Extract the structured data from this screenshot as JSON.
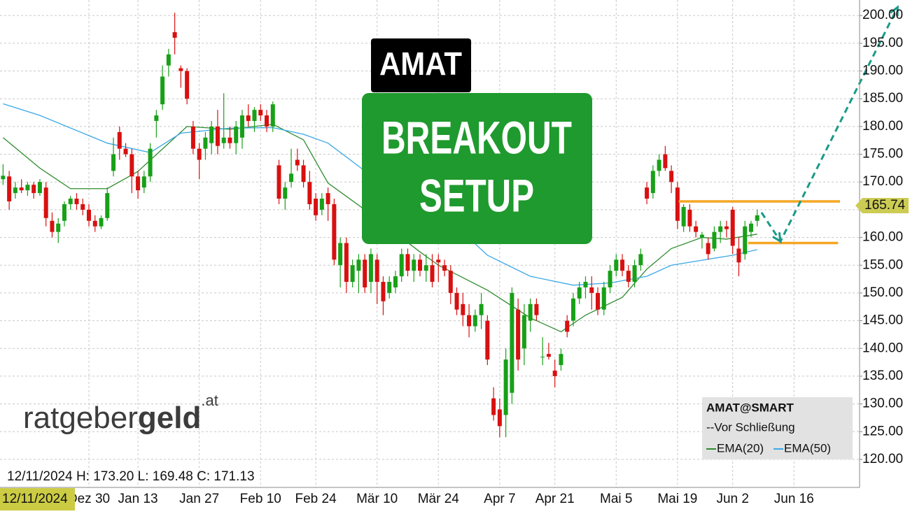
{
  "chart_data": {
    "type": "candlestick",
    "title": "AMAT",
    "badge_lines": [
      "BREAKOUT",
      "SETUP"
    ],
    "crosshair_info": "12/11/2024 H: 173.20 L: 169.48 C: 171.13",
    "cursor_date": "12/11/2024",
    "logo": {
      "light": "ratgeber",
      "bold": "geld",
      "suffix": ".at"
    },
    "legend_title": "AMAT@SMART",
    "legend_note": "--Vor Schließung",
    "last_price": {
      "value": 165.74,
      "label": "165.74",
      "color": "#cccc55"
    },
    "xlim": [
      -0.5,
      139.7
    ],
    "ylim": [
      115.2,
      202.8
    ],
    "yticks": [
      {
        "value": 120,
        "label": "120.00"
      },
      {
        "value": 125,
        "label": "125.00"
      },
      {
        "value": 130,
        "label": "130.00"
      },
      {
        "value": 135,
        "label": "135.00"
      },
      {
        "value": 140,
        "label": "140.00"
      },
      {
        "value": 145,
        "label": "145.00"
      },
      {
        "value": 150,
        "label": "150.00"
      },
      {
        "value": 155,
        "label": "155.00"
      },
      {
        "value": 160,
        "label": "160.00"
      },
      {
        "value": 165,
        "label": "165.00"
      },
      {
        "value": 170,
        "label": "170.00"
      },
      {
        "value": 175,
        "label": "175.00"
      },
      {
        "value": 180,
        "label": "180.00"
      },
      {
        "value": 185,
        "label": "185.00"
      },
      {
        "value": 190,
        "label": "190.00"
      },
      {
        "value": 195,
        "label": "195.00"
      },
      {
        "value": 200,
        "label": "200.00"
      }
    ],
    "grid": true,
    "categories": [
      null,
      null,
      null,
      null,
      null,
      null,
      null,
      null,
      null,
      null,
      null,
      null,
      null,
      null,
      "Dez 30",
      null,
      null,
      null,
      null,
      null,
      null,
      null,
      "Jan 13",
      null,
      null,
      null,
      null,
      null,
      null,
      null,
      null,
      null,
      "Jan 27",
      null,
      null,
      null,
      null,
      null,
      null,
      null,
      null,
      null,
      "Feb 10",
      null,
      null,
      null,
      null,
      null,
      null,
      null,
      null,
      "Feb 24",
      null,
      null,
      null,
      null,
      null,
      null,
      null,
      null,
      null,
      "Mär 10",
      null,
      null,
      null,
      null,
      null,
      null,
      null,
      null,
      null,
      "Mär 24",
      null,
      null,
      null,
      null,
      null,
      null,
      null,
      null,
      null,
      "Apr 7",
      null,
      null,
      null,
      null,
      null,
      null,
      null,
      null,
      "Apr 21",
      null,
      null,
      null,
      null,
      null,
      null,
      null,
      null,
      null,
      "Mai 5",
      null,
      null,
      null,
      null,
      null,
      null,
      null,
      null,
      null,
      "Mai 19",
      null,
      null,
      null,
      null,
      null,
      null,
      null,
      null,
      "Jun 2",
      null,
      null,
      null,
      null,
      null,
      null,
      null,
      null,
      null,
      "Jun 16",
      null,
      null,
      null,
      null,
      null,
      null,
      null,
      null,
      null,
      null
    ],
    "series": [
      {
        "name": "AMAT@SMART",
        "up_color": "#18a018",
        "down_color": "#d81010",
        "open": [
          170.5,
          171,
          168,
          169,
          168.5,
          169.5,
          168,
          169,
          163,
          161,
          163,
          166,
          167,
          166,
          165,
          163,
          162,
          163.5,
          172,
          179,
          176,
          175,
          171,
          169,
          171,
          181,
          184,
          191,
          197,
          190.5,
          190,
          180,
          176,
          176,
          177,
          180,
          177,
          178,
          177,
          178,
          182,
          181,
          183,
          182,
          180,
          173,
          167,
          170,
          174,
          173,
          170,
          167,
          165,
          168,
          166,
          155,
          159,
          152,
          154,
          156,
          152,
          156,
          152,
          150,
          151,
          153,
          157,
          154,
          156,
          154,
          155,
          156,
          155,
          154,
          150,
          148,
          146,
          144,
          146,
          145,
          131,
          129,
          128,
          132,
          147,
          140,
          145,
          148,
          138.5,
          139,
          136,
          137,
          145,
          145,
          149,
          151,
          151,
          150,
          147,
          151,
          154,
          156,
          154,
          152,
          155,
          169,
          168,
          172,
          175,
          172,
          169,
          162,
          165,
          162,
          160,
          159,
          158,
          161,
          162,
          165,
          158,
          157,
          161,
          163,
          null,
          null,
          null,
          null,
          null,
          null,
          null,
          null,
          null,
          null,
          null,
          null,
          null,
          null,
          null,
          null
        ],
        "high": [
          173.2,
          172,
          170,
          170.5,
          170,
          170,
          170.5,
          170,
          164.5,
          163.5,
          166.5,
          167.5,
          168,
          167,
          166,
          164,
          164,
          169,
          178,
          180,
          177,
          176,
          172,
          172,
          177,
          183,
          191,
          194,
          200.5,
          191,
          190.5,
          181,
          177,
          179,
          181,
          183,
          186,
          180,
          181,
          183,
          184,
          183.5,
          184,
          183,
          184.5,
          174,
          170,
          176,
          176,
          174,
          172,
          168,
          168,
          169,
          167,
          160,
          160,
          156,
          157,
          157,
          158,
          157,
          153,
          153,
          154,
          158,
          158,
          157,
          157,
          157,
          157,
          157,
          156,
          155,
          151,
          150,
          148,
          147,
          150,
          146,
          133,
          131,
          140,
          151,
          149,
          148,
          149,
          149,
          142,
          141,
          138,
          140,
          146,
          150,
          152,
          153,
          153,
          151,
          152,
          155,
          157,
          157,
          155,
          156,
          158,
          170,
          173,
          175,
          176.5,
          173,
          170,
          166,
          166,
          163,
          161,
          160,
          162,
          163,
          163,
          165.5,
          160,
          163,
          163,
          165,
          null,
          null,
          null,
          null,
          null,
          null,
          null,
          null,
          null,
          null,
          null,
          null,
          null,
          null,
          null,
          null
        ],
        "low": [
          169.48,
          165,
          167,
          168,
          167.5,
          167,
          167.5,
          162,
          160,
          159,
          162,
          165,
          165,
          164,
          162,
          161,
          161.5,
          163,
          171,
          174,
          174.5,
          168,
          167,
          168,
          170,
          178,
          183,
          189,
          193,
          187,
          184,
          175,
          170.5,
          174,
          175,
          175,
          176,
          176,
          175,
          176,
          180,
          179,
          181,
          179,
          179,
          166,
          165,
          169,
          172,
          169,
          165,
          163,
          164,
          163,
          155,
          151,
          150,
          151,
          150,
          150,
          150,
          148,
          146,
          149,
          150,
          152,
          153,
          152,
          153,
          152,
          151,
          152,
          153,
          148,
          146,
          144,
          142,
          143,
          143.5,
          137,
          127,
          124,
          124,
          130,
          136,
          137,
          143,
          145,
          137,
          138,
          133,
          136,
          142,
          144,
          148,
          149,
          147,
          146,
          146,
          150,
          153,
          153,
          151,
          151,
          154,
          166,
          167,
          171,
          172,
          168,
          161.5,
          161,
          161,
          160,
          158,
          156,
          157.5,
          159,
          160,
          157,
          153,
          156,
          160,
          162,
          null,
          null,
          null,
          null,
          null,
          null,
          null,
          null,
          null,
          null,
          null,
          null,
          null,
          null,
          null,
          null
        ],
        "close": [
          171.13,
          166.5,
          169,
          168.5,
          169.5,
          168,
          170,
          163.5,
          161,
          162.5,
          166,
          167,
          166,
          165,
          163,
          162,
          163.5,
          168,
          175,
          176,
          175,
          171,
          168.5,
          171,
          176,
          182,
          189,
          193,
          196,
          190,
          185,
          176,
          174,
          178,
          180,
          176.5,
          178,
          177,
          180,
          182,
          181,
          183,
          182,
          180,
          184,
          167,
          169,
          171.5,
          173,
          170,
          166,
          164,
          167,
          166,
          156,
          159,
          152,
          155,
          156,
          151,
          157,
          152,
          148.5,
          152,
          153,
          157,
          154,
          156,
          154,
          155,
          152,
          155.5,
          154,
          150,
          147,
          146,
          144,
          146,
          148,
          138,
          128,
          126,
          138,
          150,
          138,
          146,
          148,
          146,
          138.5,
          138.5,
          135,
          139,
          143,
          149,
          151,
          152,
          150,
          147,
          151,
          154,
          156,
          154,
          152,
          155,
          157,
          167,
          172,
          174,
          172.5,
          170,
          163,
          165.5,
          162,
          161,
          160.5,
          157,
          161,
          162,
          161.5,
          158.5,
          155.5,
          162,
          162.5,
          164,
          null,
          null,
          null,
          null,
          null,
          null,
          null,
          null,
          null,
          null,
          null,
          null,
          null,
          null,
          null,
          null
        ]
      },
      {
        "name": "EMA(20)",
        "color": "#2e8b2e",
        "x": [
          0,
          6,
          11,
          17,
          22,
          30,
          37,
          44,
          49,
          53,
          59,
          68,
          71,
          79,
          86,
          91,
          95,
          101,
          105,
          109,
          114,
          118,
          123
        ],
        "values": [
          178,
          172.5,
          168.8,
          168.8,
          171.9,
          180,
          179.5,
          180.4,
          177.6,
          169.8,
          165,
          157.4,
          155,
          150.5,
          145.5,
          143,
          146,
          149.2,
          154.3,
          158,
          160,
          159.7,
          160.6
        ]
      },
      {
        "name": "EMA(50)",
        "color": "#3aa8e8",
        "x": [
          0,
          6,
          17,
          24,
          29,
          37,
          44,
          49,
          53,
          59,
          71,
          79,
          86,
          93,
          99,
          105,
          109,
          114,
          119,
          123
        ],
        "values": [
          184.1,
          182,
          177,
          175.3,
          178.8,
          179.7,
          179.8,
          178.6,
          177,
          172,
          165,
          156.8,
          153,
          151.4,
          151.8,
          153,
          155,
          155.9,
          156.8,
          157.8
        ]
      }
    ],
    "annotations": {
      "levels": [
        {
          "value": 166.5,
          "from": 110.2,
          "to": 136.5,
          "color": "#f5a623"
        },
        {
          "value": 159,
          "from": 121.5,
          "to": 136.2,
          "color": "#f5a623"
        }
      ],
      "arrow": {
        "color": "#1a9a88",
        "points": [
          [
            123.7,
            164.5
          ],
          [
            126.8,
            159.3
          ],
          [
            145.9,
            201.5
          ]
        ]
      }
    }
  }
}
